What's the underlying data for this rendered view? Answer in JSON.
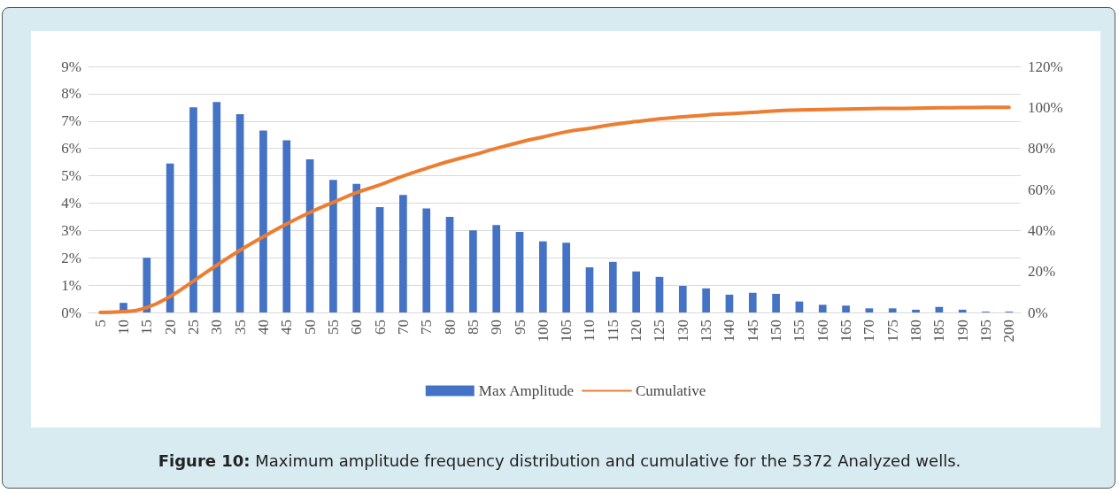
{
  "chart_data": {
    "type": "bar",
    "categories": [
      "5",
      "10",
      "15",
      "20",
      "25",
      "30",
      "35",
      "40",
      "45",
      "50",
      "55",
      "60",
      "65",
      "70",
      "75",
      "80",
      "85",
      "90",
      "95",
      "100",
      "105",
      "110",
      "115",
      "120",
      "125",
      "130",
      "135",
      "140",
      "145",
      "150",
      "155",
      "160",
      "165",
      "170",
      "175",
      "180",
      "185",
      "190",
      "195",
      "200"
    ],
    "series": [
      {
        "name": "Max Amplitude",
        "color": "#4472c4",
        "values": [
          0,
          0.35,
          2.0,
          5.45,
          7.5,
          7.7,
          7.25,
          6.65,
          6.3,
          5.6,
          4.85,
          4.7,
          3.85,
          4.3,
          3.8,
          3.5,
          3.0,
          3.2,
          2.95,
          2.6,
          2.55,
          1.65,
          1.85,
          1.5,
          1.3,
          0.97,
          0.88,
          0.65,
          0.72,
          0.68,
          0.4,
          0.28,
          0.25,
          0.15,
          0.15,
          0.1,
          0.2,
          0.1,
          0.03,
          0.03
        ]
      },
      {
        "name": "Cumulative",
        "type": "line",
        "axis": "y2",
        "color": "#ed7d31",
        "values": [
          0,
          0.4,
          2.4,
          7.8,
          15.3,
          23,
          30.3,
          36.9,
          43.2,
          48.8,
          53.7,
          58.4,
          62.2,
          66.5,
          70.3,
          73.8,
          76.8,
          80,
          83,
          85.6,
          88.1,
          89.8,
          91.6,
          93.1,
          94.4,
          95.4,
          96.3,
          96.9,
          97.6,
          98.3,
          98.7,
          99,
          99.2,
          99.4,
          99.5,
          99.6,
          99.8,
          99.9,
          100,
          100
        ]
      }
    ],
    "ylim": [
      0,
      9
    ],
    "yticks": [
      {
        "value": 0,
        "label": "0%"
      },
      {
        "value": 1,
        "label": "1%"
      },
      {
        "value": 2,
        "label": "2%"
      },
      {
        "value": 3,
        "label": "3%"
      },
      {
        "value": 4,
        "label": "4%"
      },
      {
        "value": 5,
        "label": "5%"
      },
      {
        "value": 6,
        "label": "6%"
      },
      {
        "value": 7,
        "label": "7%"
      },
      {
        "value": 8,
        "label": "8%"
      },
      {
        "value": 9,
        "label": "9%"
      }
    ],
    "y2lim": [
      0,
      120
    ],
    "y2ticks": [
      {
        "value": 0,
        "label": "0%"
      },
      {
        "value": 20,
        "label": "20%"
      },
      {
        "value": 40,
        "label": "40%"
      },
      {
        "value": 60,
        "label": "60%"
      },
      {
        "value": 80,
        "label": "80%"
      },
      {
        "value": 100,
        "label": "100%"
      },
      {
        "value": 120,
        "label": "120%"
      }
    ],
    "grid": "y",
    "legend": "bottom",
    "marker": "none",
    "annotations": [
      "Figure 10: Maximum amplitude frequency distribution and cumulative for the 5372 Analyzed wells."
    ]
  }
}
